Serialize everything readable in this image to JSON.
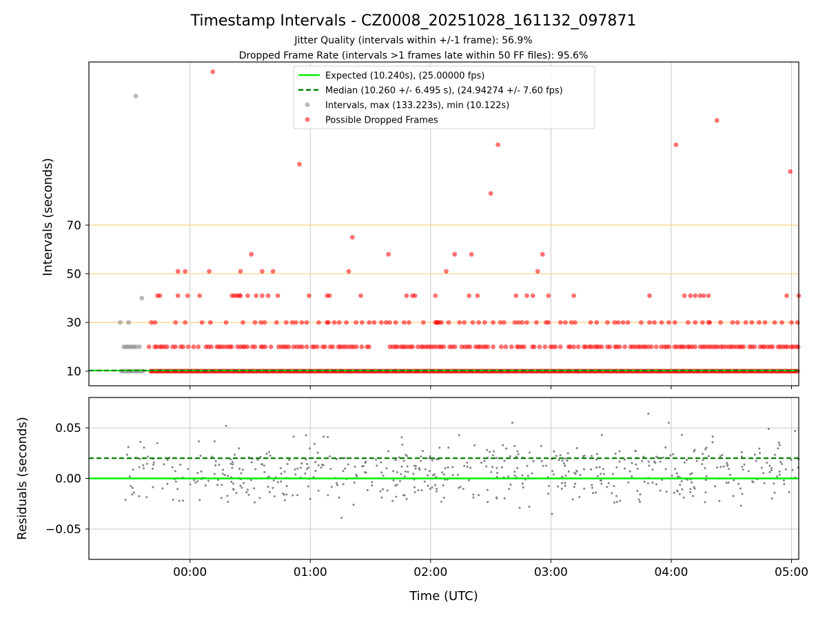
{
  "figure": {
    "title": "Timestamp Intervals - CZ0008_20251028_161132_097871",
    "subtitle_1": "Jitter Quality (intervals within +/-1 frame): 56.9%",
    "subtitle_2": "Dropped Frame Rate (intervals >1 frames late within 50 FF files): 95.6%"
  },
  "colors": {
    "expected": "#00ee00",
    "median": "#008000",
    "intervals": "#808080",
    "dropped": "#ff0000",
    "reference_lines": "#ffd27a",
    "grid": "#c8c8c8"
  },
  "chart_data": [
    {
      "type": "scatter",
      "panel": "intervals",
      "ylabel": "Intervals (seconds)",
      "xlim_hours": [
        -0.84,
        5.06
      ],
      "ylim": [
        4,
        137
      ],
      "yticks": [
        10,
        30,
        50,
        70
      ],
      "ytick_labels": [
        "10",
        "30",
        "50",
        "70"
      ],
      "reference_lines": [
        30,
        50,
        70
      ],
      "grid": "vertical",
      "legend": {
        "placement": "upper-center",
        "entries": [
          {
            "id": "expected",
            "label": "Expected (10.240s), (25.00000 fps)"
          },
          {
            "id": "median",
            "label": "Median (10.260 +/- 6.495 s), (24.94274 +/- 7.60 fps)"
          },
          {
            "id": "intervals",
            "label": "Intervals, max (133.223s), min (10.122s)"
          },
          {
            "id": "dropped",
            "label": "Possible Dropped Frames"
          }
        ]
      },
      "series": [
        {
          "name": "Expected",
          "kind": "hline",
          "y": 10.24
        },
        {
          "name": "Median",
          "kind": "hline",
          "y": 10.26
        },
        {
          "name": "Intervals (normal, gray)",
          "kind": "points",
          "points": [
            [
              -0.58,
              30
            ],
            [
              -0.51,
              30
            ],
            [
              -0.4,
              40
            ],
            [
              -0.45,
              123
            ],
            [
              -0.55,
              20
            ],
            [
              -0.53,
              20
            ],
            [
              -0.51,
              20
            ],
            [
              -0.49,
              20
            ],
            [
              -0.47,
              20
            ],
            [
              -0.45,
              20
            ],
            [
              -0.42,
              20
            ],
            [
              -0.57,
              10
            ],
            [
              -0.55,
              10
            ],
            [
              -0.53,
              10
            ],
            [
              -0.51,
              10
            ],
            [
              -0.49,
              10
            ],
            [
              -0.47,
              10
            ],
            [
              -0.45,
              10
            ],
            [
              -0.43,
              10
            ],
            [
              -0.41,
              10
            ],
            [
              -0.39,
              10
            ]
          ]
        },
        {
          "name": "Possible Dropped Frames",
          "kind": "points",
          "bands": [
            {
              "y": 10,
              "from": -0.33,
              "to": 5.06,
              "step": 0.0115
            },
            {
              "y": 20,
              "from": -0.36,
              "to": 5.06,
              "step": 0.0215
            }
          ],
          "points": [
            [
              0.19,
              133
            ],
            [
              4.38,
              113
            ],
            [
              2.56,
              103
            ],
            [
              4.04,
              103
            ],
            [
              0.91,
              95
            ],
            [
              4.99,
              92
            ],
            [
              2.5,
              83
            ],
            [
              1.35,
              65
            ],
            [
              0.51,
              58
            ],
            [
              1.65,
              58
            ],
            [
              2.2,
              58
            ],
            [
              2.34,
              58
            ],
            [
              2.93,
              58
            ],
            [
              -0.1,
              51
            ],
            [
              0.16,
              51
            ],
            [
              0.42,
              51
            ],
            [
              0.69,
              51
            ],
            [
              1.32,
              51
            ],
            [
              2.13,
              51
            ],
            [
              2.89,
              51
            ],
            [
              -0.1,
              41
            ],
            [
              -0.02,
              41
            ],
            [
              0.08,
              41
            ],
            [
              0.35,
              41
            ],
            [
              0.37,
              41
            ],
            [
              0.39,
              41
            ],
            [
              0.41,
              41
            ],
            [
              0.48,
              41
            ],
            [
              0.55,
              41
            ],
            [
              0.6,
              41
            ],
            [
              0.65,
              41
            ],
            [
              0.73,
              41
            ],
            [
              0.99,
              41
            ],
            [
              1.14,
              41
            ],
            [
              1.16,
              41
            ],
            [
              1.42,
              41
            ],
            [
              1.8,
              41
            ],
            [
              1.85,
              41
            ],
            [
              1.87,
              41
            ],
            [
              2.04,
              41
            ],
            [
              2.32,
              41
            ],
            [
              2.39,
              41
            ],
            [
              2.71,
              41
            ],
            [
              2.8,
              41
            ],
            [
              2.85,
              41
            ],
            [
              2.98,
              41
            ],
            [
              3.19,
              41
            ],
            [
              3.82,
              41
            ],
            [
              4.11,
              41
            ],
            [
              4.16,
              41
            ],
            [
              4.2,
              41
            ],
            [
              4.24,
              41
            ],
            [
              4.27,
              41
            ],
            [
              4.31,
              41
            ],
            [
              4.96,
              41
            ],
            [
              5.06,
              41
            ],
            [
              -0.32,
              30
            ],
            [
              -0.29,
              30
            ],
            [
              -0.12,
              30
            ],
            [
              -0.04,
              30
            ],
            [
              0.1,
              30
            ],
            [
              0.17,
              30
            ],
            [
              0.3,
              30
            ],
            [
              0.44,
              30
            ],
            [
              0.54,
              30
            ],
            [
              0.59,
              30
            ],
            [
              0.62,
              30
            ],
            [
              0.72,
              30
            ],
            [
              0.8,
              30
            ],
            [
              0.85,
              30
            ],
            [
              0.88,
              30
            ],
            [
              0.93,
              30
            ],
            [
              0.97,
              30
            ],
            [
              1.07,
              30
            ],
            [
              1.14,
              30
            ],
            [
              1.15,
              30
            ],
            [
              1.2,
              30
            ],
            [
              1.24,
              30
            ],
            [
              1.3,
              30
            ],
            [
              1.38,
              30
            ],
            [
              1.43,
              30
            ],
            [
              1.49,
              30
            ],
            [
              1.53,
              30
            ],
            [
              1.59,
              30
            ],
            [
              1.63,
              30
            ],
            [
              1.66,
              30
            ],
            [
              1.71,
              30
            ],
            [
              1.78,
              30
            ],
            [
              1.82,
              30
            ],
            [
              1.94,
              30
            ],
            [
              2.04,
              30
            ],
            [
              2.05,
              30
            ],
            [
              2.06,
              30
            ],
            [
              2.07,
              30
            ],
            [
              2.09,
              30
            ],
            [
              2.15,
              30
            ],
            [
              2.24,
              30
            ],
            [
              2.28,
              30
            ],
            [
              2.35,
              30
            ],
            [
              2.4,
              30
            ],
            [
              2.45,
              30
            ],
            [
              2.52,
              30
            ],
            [
              2.58,
              30
            ],
            [
              2.61,
              30
            ],
            [
              2.7,
              30
            ],
            [
              2.73,
              30
            ],
            [
              2.76,
              30
            ],
            [
              2.8,
              30
            ],
            [
              2.88,
              30
            ],
            [
              2.96,
              30
            ],
            [
              2.98,
              30
            ],
            [
              3.08,
              30
            ],
            [
              3.12,
              30
            ],
            [
              3.17,
              30
            ],
            [
              3.2,
              30
            ],
            [
              3.33,
              30
            ],
            [
              3.38,
              30
            ],
            [
              3.47,
              30
            ],
            [
              3.53,
              30
            ],
            [
              3.56,
              30
            ],
            [
              3.6,
              30
            ],
            [
              3.64,
              30
            ],
            [
              3.75,
              30
            ],
            [
              3.82,
              30
            ],
            [
              3.86,
              30
            ],
            [
              3.92,
              30
            ],
            [
              3.98,
              30
            ],
            [
              4.03,
              30
            ],
            [
              4.14,
              30
            ],
            [
              4.2,
              30
            ],
            [
              4.26,
              30
            ],
            [
              4.31,
              30
            ],
            [
              4.32,
              30
            ],
            [
              4.41,
              30
            ],
            [
              4.51,
              30
            ],
            [
              4.55,
              30
            ],
            [
              4.62,
              30
            ],
            [
              4.67,
              30
            ],
            [
              4.73,
              30
            ],
            [
              4.78,
              30
            ],
            [
              4.86,
              30
            ],
            [
              4.92,
              30
            ],
            [
              5.0,
              30
            ],
            [
              5.05,
              30
            ],
            [
              -0.25,
              41
            ],
            [
              -0.27,
              41
            ],
            [
              -0.04,
              51
            ],
            [
              0.42,
              41
            ],
            [
              0.6,
              51
            ]
          ]
        }
      ]
    },
    {
      "type": "scatter",
      "panel": "residuals",
      "xlabel": "Time (UTC)",
      "ylabel": "Residuals (seconds)",
      "xlim_hours": [
        -0.84,
        5.06
      ],
      "ylim": [
        -0.08,
        0.08
      ],
      "yticks": [
        0.05,
        0.0,
        -0.05
      ],
      "ytick_labels": [
        "0.05",
        "0.00",
        "−0.05"
      ],
      "xticks": [
        0,
        1,
        2,
        3,
        4,
        5
      ],
      "xtick_labels": [
        "00:00",
        "01:00",
        "02:00",
        "03:00",
        "04:00",
        "05:00"
      ],
      "grid": "both",
      "series": [
        {
          "name": "Expected residual",
          "kind": "hline",
          "y": 0.0
        },
        {
          "name": "Median residual",
          "kind": "hline",
          "y": 0.02
        },
        {
          "name": "Residuals",
          "kind": "cloud",
          "count": 560,
          "center": 0.006,
          "spread": 0.017,
          "from": -0.56,
          "to": 5.06,
          "extremes": [
            [
              0.3,
              0.052
            ],
            [
              -0.14,
              -0.021
            ],
            [
              1.26,
              -0.039
            ],
            [
              1.36,
              -0.026
            ],
            [
              2.68,
              0.055
            ],
            [
              2.74,
              -0.029
            ],
            [
              2.82,
              -0.028
            ],
            [
              3.01,
              -0.035
            ],
            [
              3.81,
              0.064
            ],
            [
              3.98,
              0.055
            ],
            [
              4.58,
              -0.027
            ],
            [
              4.81,
              0.049
            ],
            [
              5.03,
              0.047
            ]
          ]
        }
      ]
    }
  ]
}
